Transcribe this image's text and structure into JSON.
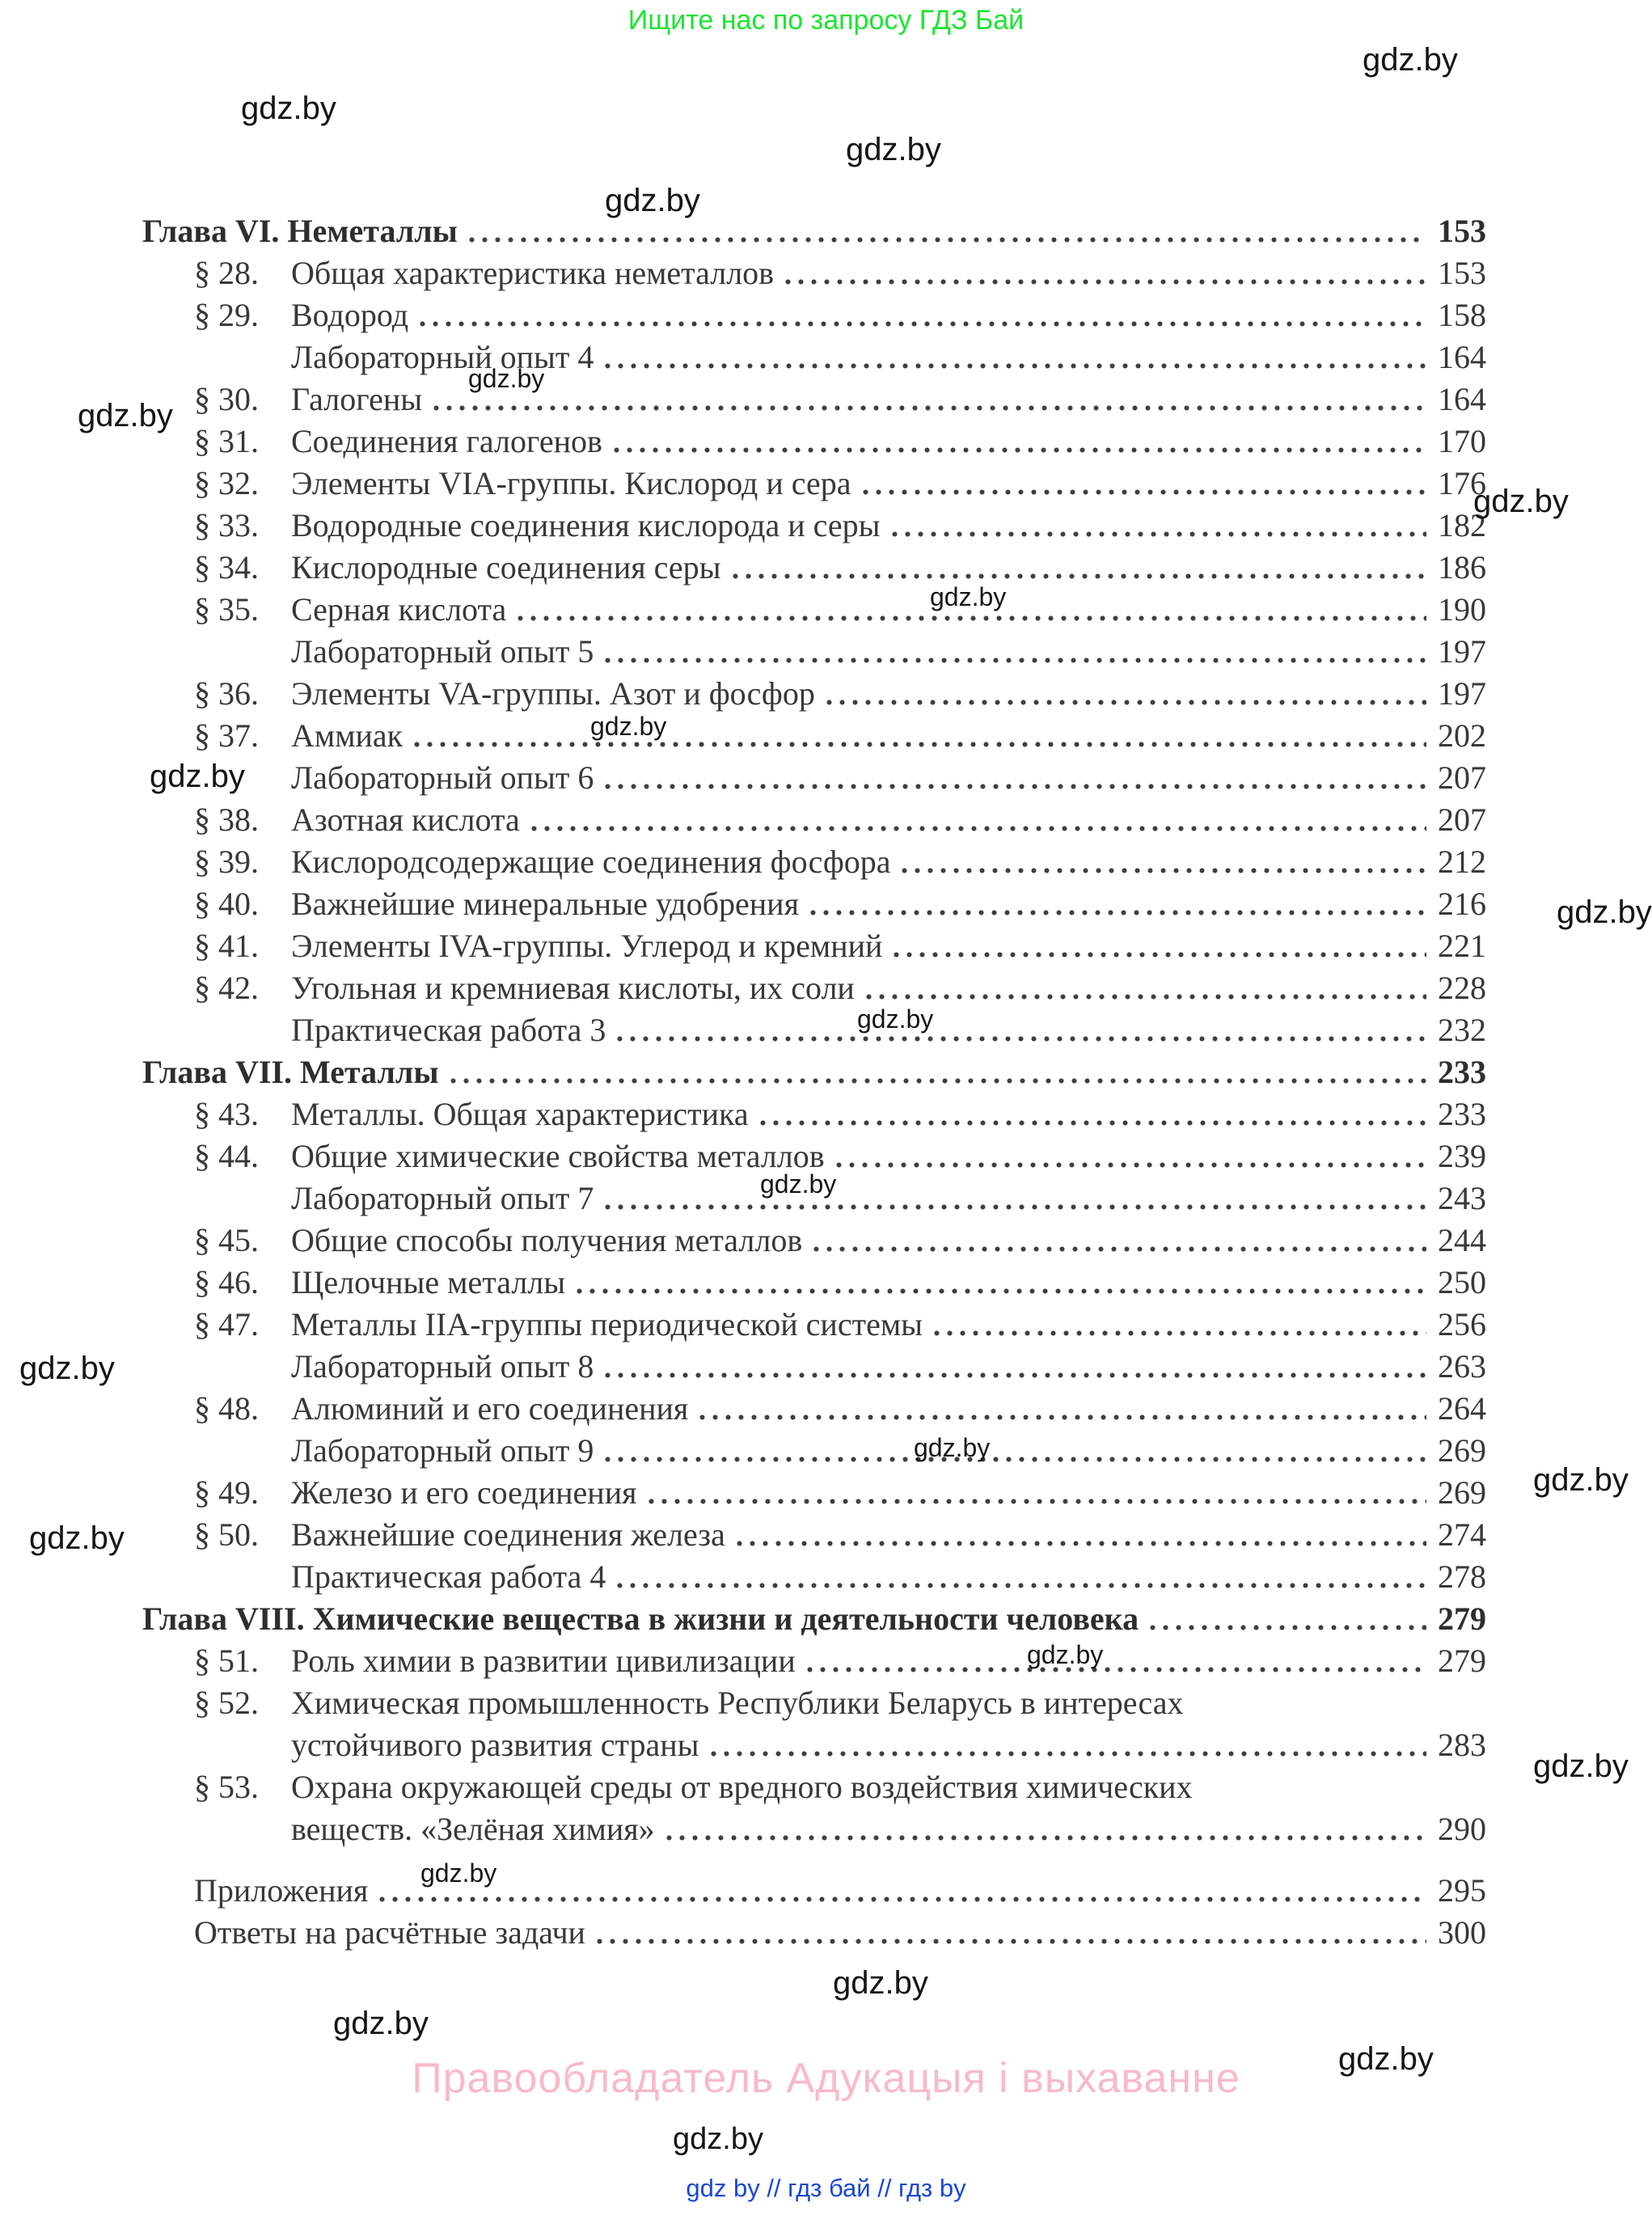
{
  "banners": {
    "top_green": "Ищите нас по запросу ГДЗ Бай",
    "top_green_color": "#1be52f",
    "copyright_pink": "Правообладатель Адукацыя і выхаванне",
    "copyright_pink_color": "#f7bac9",
    "footer_blue": "gdz by  //  гдз бай  //  гдз by",
    "footer_blue_color": "#1847d8"
  },
  "watermark": {
    "text": "gdz.by"
  },
  "toc": {
    "entries": [
      {
        "type": "chapter",
        "title": "Глава VI. Неметаллы",
        "page": "153"
      },
      {
        "type": "section",
        "num": "§ 28.",
        "title": "Общая характеристика неметаллов",
        "page": "153"
      },
      {
        "type": "section",
        "num": "§ 29.",
        "title": "Водород",
        "page": "158"
      },
      {
        "type": "sub",
        "title": "Лабораторный опыт 4",
        "page": "164"
      },
      {
        "type": "section",
        "num": "§ 30.",
        "title": "Галогены",
        "page": "164"
      },
      {
        "type": "section",
        "num": "§ 31.",
        "title": "Соединения галогенов",
        "page": "170"
      },
      {
        "type": "section",
        "num": "§ 32.",
        "title": "Элементы VIA-группы. Кислород и сера",
        "page": "176"
      },
      {
        "type": "section",
        "num": "§ 33.",
        "title": "Водородные соединения кислорода и серы",
        "page": "182"
      },
      {
        "type": "section",
        "num": "§ 34.",
        "title": "Кислородные соединения серы",
        "page": "186"
      },
      {
        "type": "section",
        "num": "§ 35.",
        "title": "Серная кислота",
        "page": "190"
      },
      {
        "type": "sub",
        "title": "Лабораторный опыт 5",
        "page": "197"
      },
      {
        "type": "section",
        "num": "§ 36.",
        "title": "Элементы VA-группы. Азот и фосфор",
        "page": "197"
      },
      {
        "type": "section",
        "num": "§ 37.",
        "title": "Аммиак",
        "page": "202"
      },
      {
        "type": "sub",
        "title": "Лабораторный опыт 6",
        "page": "207"
      },
      {
        "type": "section",
        "num": "§ 38.",
        "title": "Азотная кислота",
        "page": "207"
      },
      {
        "type": "section",
        "num": "§ 39.",
        "title": "Кислородсодержащие соединения фосфора",
        "page": "212"
      },
      {
        "type": "section",
        "num": "§ 40.",
        "title": "Важнейшие минеральные удобрения",
        "page": "216"
      },
      {
        "type": "section",
        "num": "§ 41.",
        "title": "Элементы IVA-группы. Углерод и кремний",
        "page": "221"
      },
      {
        "type": "section",
        "num": "§ 42.",
        "title": "Угольная и кремниевая кислоты, их соли",
        "page": "228"
      },
      {
        "type": "sub",
        "title": "Практическая работа 3",
        "page": "232"
      },
      {
        "type": "chapter",
        "title": "Глава VII. Металлы",
        "page": "233"
      },
      {
        "type": "section",
        "num": "§ 43.",
        "title": "Металлы. Общая характеристика",
        "page": "233"
      },
      {
        "type": "section",
        "num": "§ 44.",
        "title": "Общие химические свойства металлов",
        "page": "239"
      },
      {
        "type": "sub",
        "title": "Лабораторный опыт 7",
        "page": "243"
      },
      {
        "type": "section",
        "num": "§ 45.",
        "title": "Общие способы получения металлов",
        "page": "244"
      },
      {
        "type": "section",
        "num": "§ 46.",
        "title": "Щелочные металлы",
        "page": "250"
      },
      {
        "type": "section",
        "num": "§ 47.",
        "title": "Металлы IIA-группы периодической системы",
        "page": "256"
      },
      {
        "type": "sub",
        "title": "Лабораторный опыт 8",
        "page": "263"
      },
      {
        "type": "section",
        "num": "§ 48.",
        "title": "Алюминий и его соединения",
        "page": "264"
      },
      {
        "type": "sub",
        "title": "Лабораторный опыт 9",
        "page": "269"
      },
      {
        "type": "section",
        "num": "§ 49.",
        "title": "Железо и его соединения",
        "page": "269"
      },
      {
        "type": "section",
        "num": "§ 50.",
        "title": "Важнейшие соединения железа",
        "page": "274"
      },
      {
        "type": "sub",
        "title": "Практическая работа 4",
        "page": "278"
      },
      {
        "type": "chapter",
        "title": "Глава VIII. Химические вещества в жизни и деятельности человека",
        "page": "279"
      },
      {
        "type": "section",
        "num": "§ 51.",
        "title": "Роль химии в развитии цивилизации",
        "page": "279"
      },
      {
        "type": "section",
        "num": "§ 52.",
        "title": "Химическая промышленность Республики Беларусь в интересах",
        "page": null
      },
      {
        "type": "sub",
        "title": "устойчивого развития страны",
        "page": "283"
      },
      {
        "type": "section",
        "num": "§ 53.",
        "title": "Охрана окружающей среды от вредного воздействия химических",
        "page": null
      },
      {
        "type": "sub",
        "title": "веществ. «Зелёная химия»",
        "page": "290"
      },
      {
        "type": "spacer"
      },
      {
        "type": "plain",
        "title": "Приложения",
        "page": "295"
      },
      {
        "type": "plain",
        "title": "Ответы на расчётные задачи",
        "page": "300"
      }
    ]
  }
}
